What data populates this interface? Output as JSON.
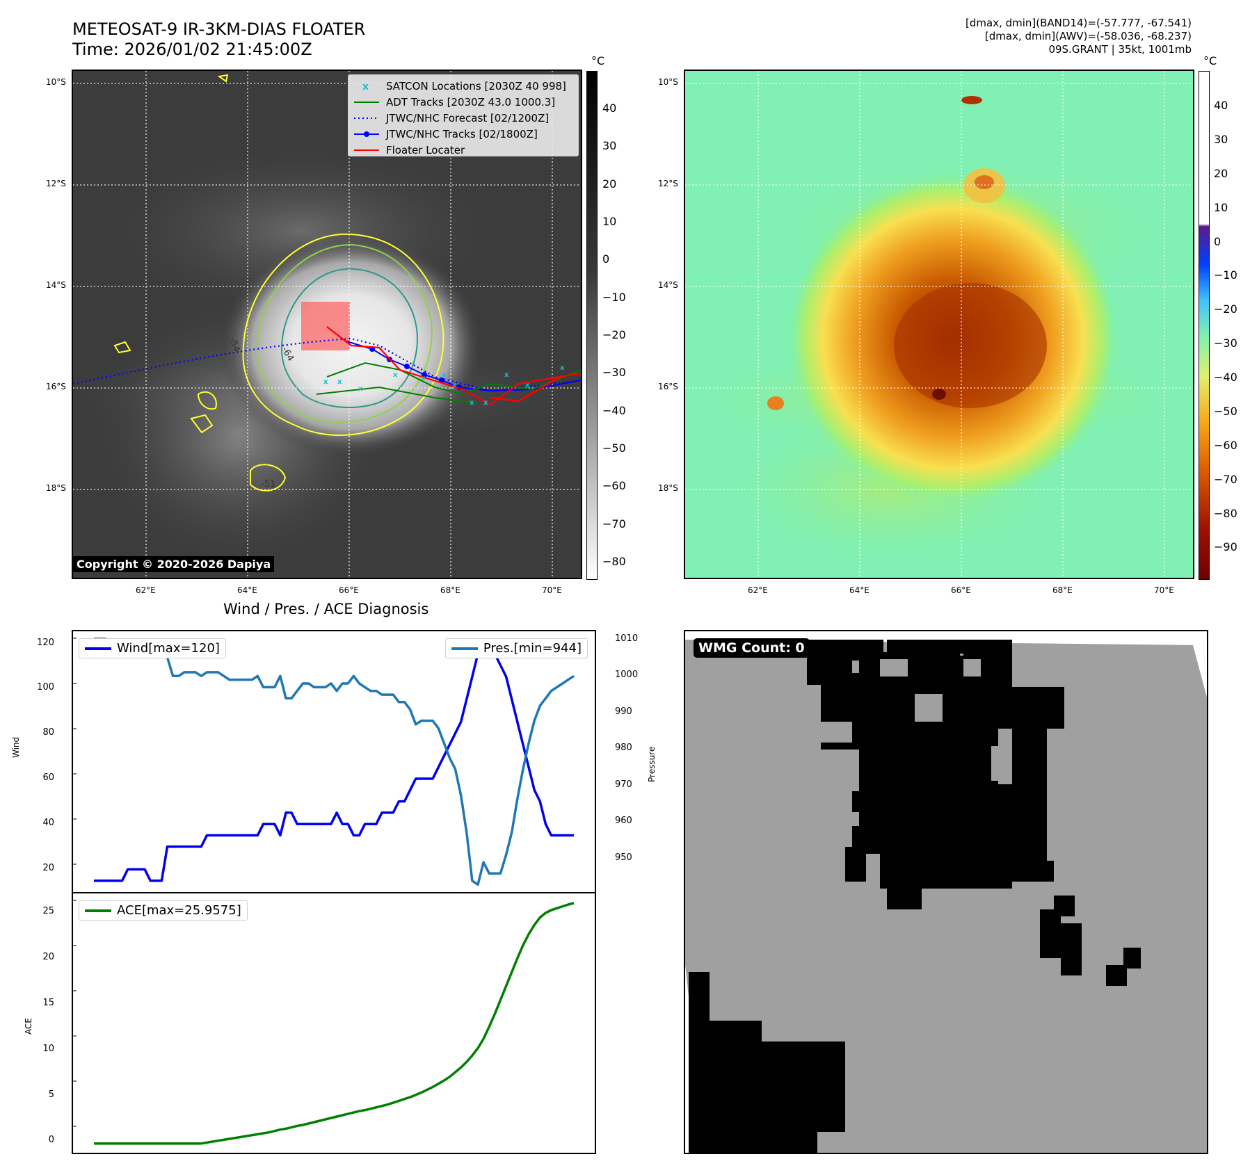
{
  "header": {
    "title_line1": "METEOSAT-9 IR-3KM-DIAS FLOATER",
    "title_line2": "Time: 2026/01/02 21:45:00Z",
    "info_line1": "[dmax, dmin](BAND14)=(-57.777, -67.541)",
    "info_line2": "[dmax, dmin](AWV)=(-58.036, -68.237)",
    "info_line3": "09S.GRANT | 35kt, 1001mb"
  },
  "map": {
    "lat_labels": [
      "10°S",
      "12°S",
      "14°S",
      "16°S",
      "18°S"
    ],
    "lon_labels": [
      "62°E",
      "64°E",
      "66°E",
      "68°E",
      "70°E"
    ],
    "copyright": "Copyright © 2020-2026 Dapiya",
    "legend": [
      {
        "label": "SATCON Locations [2030Z 40 998]",
        "color": "#17becf",
        "style": "x"
      },
      {
        "label": "ADT Tracks [2030Z 43.0 1000.3]",
        "color": "#008000",
        "style": "line"
      },
      {
        "label": "JTWC/NHC Forecast [02/1200Z]",
        "color": "#0000ff",
        "style": "dotted"
      },
      {
        "label": "JTWC/NHC Tracks [02/1800Z]",
        "color": "#0000ff",
        "style": "dotline"
      },
      {
        "label": "Floater Locater",
        "color": "#ff0000",
        "style": "line"
      }
    ],
    "contour_labels": [
      "-54",
      "-64",
      "-54",
      "-51"
    ]
  },
  "colorbar_ir": {
    "unit": "°C",
    "ticks": [
      "40",
      "30",
      "20",
      "10",
      "0",
      "−10",
      "−20",
      "−30",
      "−40",
      "−50",
      "−60",
      "−70",
      "−80"
    ]
  },
  "colorbar_awv": {
    "unit": "°C",
    "ticks": [
      "40",
      "30",
      "20",
      "10",
      "0",
      "−10",
      "−20",
      "−30",
      "−40",
      "−50",
      "−60",
      "−70",
      "−80",
      "−90"
    ]
  },
  "diagnosis": {
    "title": "Wind / Pres. / ACE Diagnosis",
    "wind_ylabel": "Wind",
    "pres_ylabel": "Pressure",
    "ace_ylabel": "ACE",
    "wind_legend": "Wind[max=120]",
    "pres_legend": "Pres.[min=944]",
    "ace_legend": "ACE[max=25.9575]",
    "wind_ticks": [
      "120",
      "100",
      "80",
      "60",
      "40",
      "20"
    ],
    "pres_ticks": [
      "1010",
      "1000",
      "990",
      "980",
      "970",
      "960",
      "950"
    ],
    "ace_ticks": [
      "25",
      "20",
      "15",
      "10",
      "5",
      "0"
    ],
    "colors": {
      "wind": "#0000ee",
      "pres": "#1f77b4",
      "ace": "#008000"
    }
  },
  "wmg": {
    "label": "WMG Count: 0"
  },
  "chart_data": [
    {
      "type": "line",
      "title": "Wind / Pres. / ACE Diagnosis",
      "ylabel": "Wind",
      "ylim": [
        10,
        125
      ],
      "series": [
        {
          "name": "Wind[max=120]",
          "values": [
            15,
            15,
            15,
            15,
            15,
            15,
            20,
            20,
            20,
            20,
            15,
            15,
            15,
            30,
            30,
            30,
            30,
            30,
            30,
            30,
            35,
            35,
            35,
            35,
            35,
            35,
            35,
            35,
            35,
            35,
            40,
            40,
            40,
            35,
            45,
            45,
            40,
            40,
            40,
            40,
            40,
            40,
            40,
            45,
            40,
            40,
            35,
            35,
            40,
            40,
            40,
            45,
            45,
            45,
            50,
            50,
            55,
            60,
            60,
            60,
            60,
            65,
            70,
            75,
            80,
            85,
            95,
            105,
            115,
            120,
            120,
            115,
            110,
            105,
            95,
            85,
            75,
            65,
            55,
            50,
            40,
            35,
            35,
            35,
            35,
            35
          ]
        }
      ]
    },
    {
      "type": "line",
      "ylabel": "Pressure",
      "ylim": [
        942,
        1012
      ],
      "series": [
        {
          "name": "Pres.[min=944]",
          "values": [
            1010,
            1010,
            1010,
            1008,
            1008,
            1008,
            1008,
            1007,
            1007,
            1007,
            1008,
            1008,
            1008,
            1005,
            1000,
            1000,
            1001,
            1001,
            1001,
            1000,
            1001,
            1001,
            1001,
            1000,
            999,
            999,
            999,
            999,
            999,
            1000,
            997,
            997,
            997,
            1000,
            994,
            994,
            996,
            998,
            998,
            997,
            997,
            997,
            998,
            996,
            998,
            998,
            1000,
            998,
            997,
            996,
            996,
            995,
            995,
            995,
            993,
            993,
            991,
            987,
            988,
            988,
            988,
            986,
            982,
            978,
            975,
            968,
            958,
            945,
            944,
            950,
            947,
            947,
            947,
            952,
            958,
            967,
            975,
            982,
            988,
            992,
            994,
            996,
            997,
            998,
            999,
            1000
          ]
        }
      ]
    },
    {
      "type": "line",
      "ylabel": "ACE",
      "ylim": [
        -1,
        27
      ],
      "series": [
        {
          "name": "ACE[max=25.9575]",
          "values": [
            0,
            0,
            0,
            0,
            0,
            0,
            0,
            0,
            0,
            0,
            0,
            0,
            0,
            0,
            0,
            0,
            0,
            0,
            0,
            0,
            0.1,
            0.2,
            0.3,
            0.4,
            0.5,
            0.6,
            0.7,
            0.8,
            0.9,
            1.0,
            1.1,
            1.2,
            1.35,
            1.5,
            1.6,
            1.75,
            1.9,
            2.0,
            2.15,
            2.3,
            2.45,
            2.6,
            2.75,
            2.9,
            3.05,
            3.2,
            3.35,
            3.5,
            3.6,
            3.75,
            3.9,
            4.05,
            4.2,
            4.4,
            4.6,
            4.8,
            5.0,
            5.25,
            5.5,
            5.8,
            6.1,
            6.45,
            6.8,
            7.2,
            7.7,
            8.2,
            8.8,
            9.5,
            10.3,
            11.3,
            12.6,
            14.0,
            15.5,
            17.0,
            18.5,
            20.0,
            21.4,
            22.6,
            23.6,
            24.4,
            24.9,
            25.2,
            25.4,
            25.6,
            25.8,
            25.96
          ]
        }
      ]
    }
  ]
}
